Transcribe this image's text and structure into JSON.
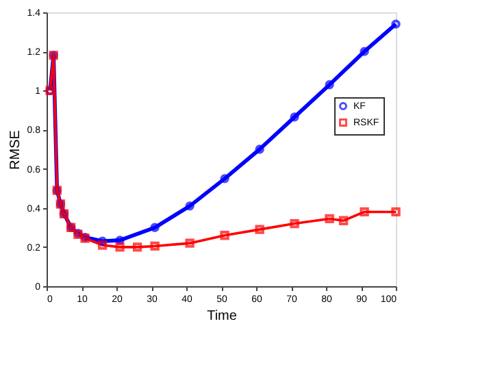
{
  "chart_data": {
    "type": "line",
    "xlabel": "Time",
    "ylabel": "RMSE",
    "xlim": [
      0,
      100
    ],
    "ylim": [
      0,
      1.4
    ],
    "xticks": [
      0,
      10,
      20,
      30,
      40,
      50,
      60,
      70,
      80,
      90,
      100
    ],
    "yticks": [
      0,
      0.2,
      0.4,
      0.6,
      0.8,
      1,
      1.2,
      1.4
    ],
    "grid": false,
    "legend": "right",
    "line_style": "solid",
    "series": [
      {
        "name": "KF",
        "color": "#0000ff",
        "marker": "circle",
        "x": [
          1,
          2,
          3,
          4,
          5,
          7,
          9,
          11,
          16,
          21,
          31,
          41,
          51,
          61,
          71,
          81,
          91,
          100
        ],
        "values": [
          1,
          1.18,
          0.49,
          0.42,
          0.37,
          0.3,
          0.27,
          0.25,
          0.23,
          0.235,
          0.3,
          0.41,
          0.55,
          0.7,
          0.865,
          1.03,
          1.2,
          1.34
        ]
      },
      {
        "name": "RSKF",
        "color": "#ff0000",
        "marker": "square",
        "x": [
          1,
          2,
          3,
          4,
          5,
          7,
          9,
          11,
          16,
          21,
          26,
          31,
          41,
          51,
          61,
          71,
          81,
          85,
          91,
          100
        ],
        "values": [
          1,
          1.18,
          0.49,
          0.42,
          0.37,
          0.3,
          0.265,
          0.245,
          0.21,
          0.2,
          0.2,
          0.205,
          0.22,
          0.26,
          0.29,
          0.32,
          0.345,
          0.335,
          0.38,
          0.38
        ]
      }
    ]
  }
}
